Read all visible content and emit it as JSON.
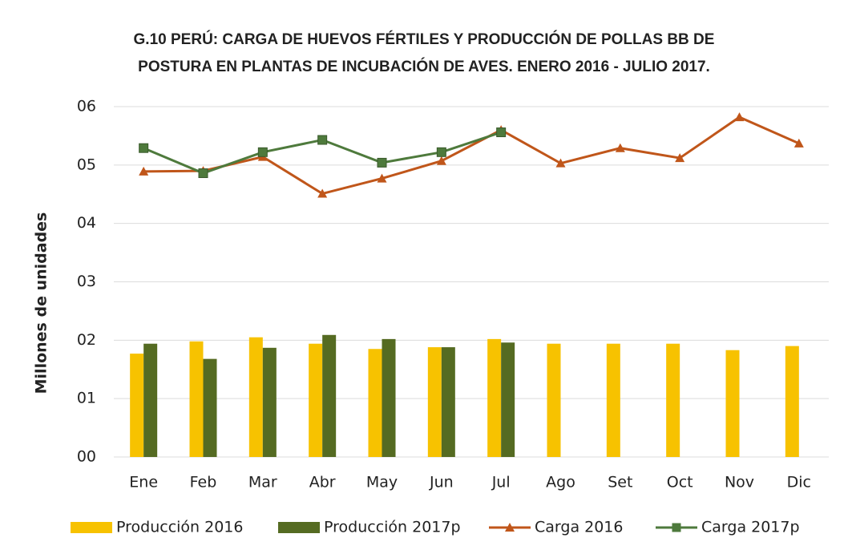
{
  "chart_data": {
    "type": "bar",
    "title": [
      "G.10  PERÚ: CARGA DE HUEVOS FÉRTILES Y PRODUCCIÓN DE POLLAS BB DE",
      "POSTURA EN PLANTAS DE INCUBACIÓN DE AVES. ENERO 2016 - JULIO 2017."
    ],
    "y_label": "Millones de unidades",
    "categories": [
      "Ene",
      "Feb",
      "Mar",
      "Abr",
      "May",
      "Jun",
      "Jul",
      "Ago",
      "Set",
      "Oct",
      "Nov",
      "Dic"
    ],
    "series": [
      {
        "name": "Producción 2016",
        "type": "bar",
        "color": "#f7c200",
        "values": [
          1.77,
          1.98,
          2.05,
          1.94,
          1.85,
          1.88,
          2.02,
          1.94,
          1.94,
          1.94,
          1.83,
          1.9
        ]
      },
      {
        "name": "Producción 2017p",
        "type": "bar",
        "color": "#556b22",
        "values": [
          1.94,
          1.68,
          1.87,
          2.09,
          2.02,
          1.88,
          1.96,
          null,
          null,
          null,
          null,
          null
        ]
      },
      {
        "name": "Carga 2016",
        "type": "line",
        "marker": "triangle",
        "color": "#c0561a",
        "values": [
          4.89,
          4.9,
          5.14,
          4.51,
          4.77,
          5.07,
          5.6,
          5.03,
          5.29,
          5.12,
          5.82,
          5.37
        ]
      },
      {
        "name": "Carga 2017p",
        "type": "line",
        "marker": "square",
        "color": "#4e7a3c",
        "values": [
          5.29,
          4.86,
          5.22,
          5.43,
          5.04,
          5.22,
          5.56,
          null,
          null,
          null,
          null,
          null
        ]
      }
    ],
    "ylim": [
      0,
      6
    ],
    "yticks": [
      {
        "value": 0,
        "label": "00"
      },
      {
        "value": 1,
        "label": "01"
      },
      {
        "value": 2,
        "label": "02"
      },
      {
        "value": 3,
        "label": "03"
      },
      {
        "value": 4,
        "label": "04"
      },
      {
        "value": 5,
        "label": "05"
      },
      {
        "value": 6,
        "label": "06"
      }
    ],
    "grid": true,
    "legend": "bottom"
  }
}
